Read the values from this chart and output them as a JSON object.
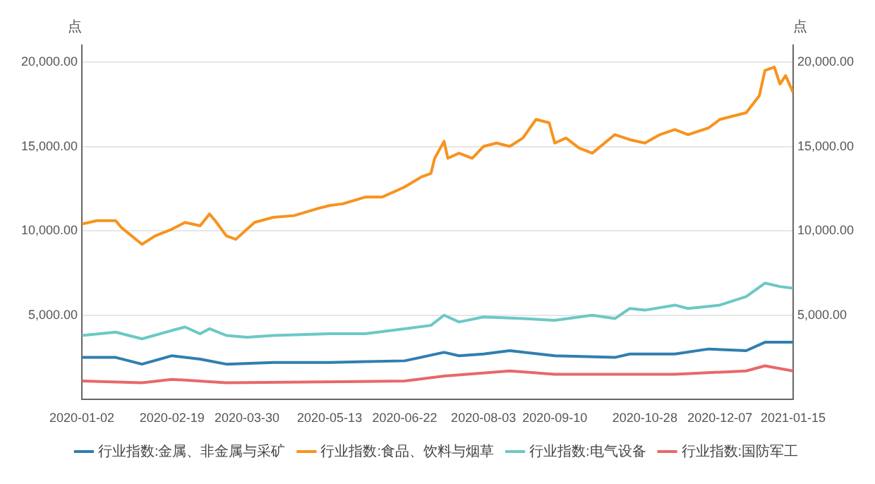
{
  "chart_data": {
    "type": "line",
    "ylabel": "点",
    "y2label": "点",
    "xlim": [
      "2020-01-02",
      "2021-01-15"
    ],
    "xticks": [
      "2020-01-02",
      "2020-02-19",
      "2020-03-30",
      "2020-05-13",
      "2020-06-22",
      "2020-08-03",
      "2020-09-10",
      "2020-10-28",
      "2020-12-07",
      "2021-01-15"
    ],
    "ylim": [
      0,
      21000
    ],
    "yticks": [
      {
        "value": 5000,
        "label": "5,000.00"
      },
      {
        "value": 10000,
        "label": "10,000.00"
      },
      {
        "value": 15000,
        "label": "15,000.00"
      },
      {
        "value": 20000,
        "label": "20,000.00"
      }
    ],
    "y2lim": [
      0,
      21000
    ],
    "y2ticks": [
      {
        "value": 5000,
        "label": "5,000.00"
      },
      {
        "value": 10000,
        "label": "10,000.00"
      },
      {
        "value": 15000,
        "label": "15,000.00"
      },
      {
        "value": 20000,
        "label": "20,000.00"
      }
    ],
    "grid": "y",
    "legend": "bottom",
    "marker": "none",
    "line_style": "solid",
    "series": [
      {
        "name": "行业指数:金属、非金属与采矿",
        "color": "#2f7fb0",
        "x": [
          "2020-01-02",
          "2020-01-20",
          "2020-02-03",
          "2020-02-19",
          "2020-03-05",
          "2020-03-19",
          "2020-04-13",
          "2020-05-13",
          "2020-06-22",
          "2020-07-13",
          "2020-07-21",
          "2020-08-03",
          "2020-08-17",
          "2020-09-10",
          "2020-10-12",
          "2020-10-20",
          "2020-11-13",
          "2020-12-01",
          "2020-12-21",
          "2020-12-31",
          "2021-01-15"
        ],
        "values": [
          2500,
          2500,
          2100,
          2600,
          2400,
          2100,
          2200,
          2200,
          2300,
          2800,
          2600,
          2700,
          2900,
          2600,
          2500,
          2700,
          2700,
          3000,
          2900,
          3400,
          3400
        ]
      },
      {
        "name": "行业指数:食品、饮料与烟草",
        "color": "#f7931e",
        "x": [
          "2020-01-02",
          "2020-01-10",
          "2020-01-20",
          "2020-01-23",
          "2020-02-03",
          "2020-02-10",
          "2020-02-19",
          "2020-02-26",
          "2020-03-05",
          "2020-03-10",
          "2020-03-13",
          "2020-03-19",
          "2020-03-24",
          "2020-03-30",
          "2020-04-03",
          "2020-04-13",
          "2020-04-24",
          "2020-05-06",
          "2020-05-13",
          "2020-05-20",
          "2020-06-01",
          "2020-06-10",
          "2020-06-22",
          "2020-07-01",
          "2020-07-06",
          "2020-07-08",
          "2020-07-13",
          "2020-07-15",
          "2020-07-21",
          "2020-07-28",
          "2020-08-03",
          "2020-08-10",
          "2020-08-17",
          "2020-08-24",
          "2020-08-31",
          "2020-09-07",
          "2020-09-10",
          "2020-09-16",
          "2020-09-23",
          "2020-09-30",
          "2020-10-12",
          "2020-10-20",
          "2020-10-28",
          "2020-11-05",
          "2020-11-13",
          "2020-11-20",
          "2020-12-01",
          "2020-12-07",
          "2020-12-14",
          "2020-12-21",
          "2020-12-28",
          "2020-12-31",
          "2021-01-05",
          "2021-01-08",
          "2021-01-11",
          "2021-01-15"
        ],
        "values": [
          10400,
          10600,
          10600,
          10200,
          9200,
          9700,
          10100,
          10500,
          10300,
          11000,
          10600,
          9700,
          9500,
          10100,
          10500,
          10800,
          10900,
          11300,
          11500,
          11600,
          12000,
          12000,
          12600,
          13200,
          13400,
          14300,
          15300,
          14300,
          14600,
          14300,
          15000,
          15200,
          15000,
          15500,
          16600,
          16400,
          15200,
          15500,
          14900,
          14600,
          15700,
          15400,
          15200,
          15700,
          16000,
          15700,
          16100,
          16600,
          16800,
          17000,
          18000,
          19500,
          19700,
          18700,
          19200,
          18200
        ]
      },
      {
        "name": "行业指数:电气设备",
        "color": "#6cc8c6",
        "x": [
          "2020-01-02",
          "2020-01-20",
          "2020-02-03",
          "2020-02-19",
          "2020-02-26",
          "2020-03-05",
          "2020-03-10",
          "2020-03-19",
          "2020-03-30",
          "2020-04-13",
          "2020-05-13",
          "2020-06-01",
          "2020-06-22",
          "2020-07-06",
          "2020-07-13",
          "2020-07-21",
          "2020-08-03",
          "2020-08-24",
          "2020-09-10",
          "2020-09-30",
          "2020-10-12",
          "2020-10-20",
          "2020-10-28",
          "2020-11-13",
          "2020-11-20",
          "2020-12-07",
          "2020-12-21",
          "2020-12-31",
          "2021-01-08",
          "2021-01-15"
        ],
        "values": [
          3800,
          4000,
          3600,
          4100,
          4300,
          3900,
          4200,
          3800,
          3700,
          3800,
          3900,
          3900,
          4200,
          4400,
          5000,
          4600,
          4900,
          4800,
          4700,
          5000,
          4800,
          5400,
          5300,
          5600,
          5400,
          5600,
          6100,
          6900,
          6700,
          6600
        ]
      },
      {
        "name": "行业指数:国防军工",
        "color": "#e8686a",
        "x": [
          "2020-01-02",
          "2020-02-03",
          "2020-02-19",
          "2020-03-19",
          "2020-06-22",
          "2020-07-13",
          "2020-08-17",
          "2020-09-10",
          "2020-11-13",
          "2020-12-21",
          "2020-12-31",
          "2021-01-15"
        ],
        "values": [
          1100,
          1000,
          1200,
          1000,
          1100,
          1400,
          1700,
          1500,
          1500,
          1700,
          2000,
          1700
        ]
      }
    ]
  }
}
